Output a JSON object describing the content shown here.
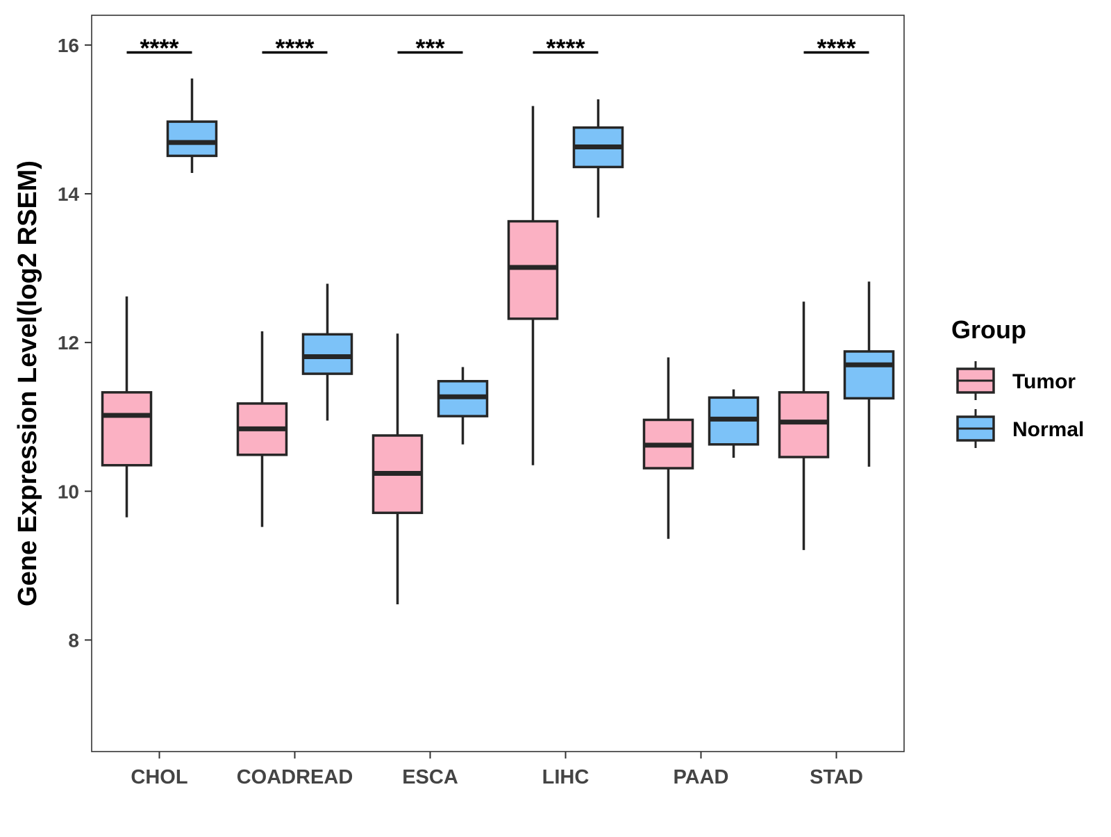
{
  "chart_data": {
    "type": "boxplot",
    "title": "",
    "xlabel": "",
    "ylabel": "Gene Expression Level(log2 RSEM)",
    "ylim": [
      6.5,
      16.4
    ],
    "yticks": [
      8,
      10,
      12,
      14,
      16
    ],
    "categories": [
      "CHOL",
      "COADREAD",
      "ESCA",
      "LIHC",
      "PAAD",
      "STAD"
    ],
    "legend": {
      "title": "Group",
      "position": "right",
      "entries": [
        {
          "label": "Tumor",
          "color": "#fbb1c3"
        },
        {
          "label": "Normal",
          "color": "#7cc2f8"
        }
      ]
    },
    "series": [
      {
        "name": "Tumor",
        "color": "#fbb1c3",
        "boxes": [
          {
            "whisker_low": 9.65,
            "q1": 10.35,
            "median": 11.02,
            "q3": 11.33,
            "whisker_high": 12.62
          },
          {
            "whisker_low": 9.52,
            "q1": 10.49,
            "median": 10.84,
            "q3": 11.18,
            "whisker_high": 12.15
          },
          {
            "whisker_low": 8.48,
            "q1": 9.71,
            "median": 10.24,
            "q3": 10.75,
            "whisker_high": 12.12
          },
          {
            "whisker_low": 10.35,
            "q1": 12.32,
            "median": 13.01,
            "q3": 13.63,
            "whisker_high": 15.18
          },
          {
            "whisker_low": 9.36,
            "q1": 10.31,
            "median": 10.62,
            "q3": 10.96,
            "whisker_high": 11.8
          },
          {
            "whisker_low": 9.21,
            "q1": 10.46,
            "median": 10.93,
            "q3": 11.33,
            "whisker_high": 12.55
          }
        ]
      },
      {
        "name": "Normal",
        "color": "#7cc2f8",
        "boxes": [
          {
            "whisker_low": 14.28,
            "q1": 14.51,
            "median": 14.69,
            "q3": 14.97,
            "whisker_high": 15.55
          },
          {
            "whisker_low": 10.95,
            "q1": 11.58,
            "median": 11.81,
            "q3": 12.11,
            "whisker_high": 12.79
          },
          {
            "whisker_low": 10.63,
            "q1": 11.01,
            "median": 11.27,
            "q3": 11.48,
            "whisker_high": 11.67
          },
          {
            "whisker_low": 13.68,
            "q1": 14.36,
            "median": 14.63,
            "q3": 14.89,
            "whisker_high": 15.27
          },
          {
            "whisker_low": 10.45,
            "q1": 10.63,
            "median": 10.97,
            "q3": 11.26,
            "whisker_high": 11.37
          },
          {
            "whisker_low": 10.33,
            "q1": 11.25,
            "median": 11.7,
            "q3": 11.88,
            "whisker_high": 12.82
          }
        ]
      }
    ],
    "significance": [
      "****",
      "****",
      "***",
      "****",
      "",
      "****"
    ]
  }
}
